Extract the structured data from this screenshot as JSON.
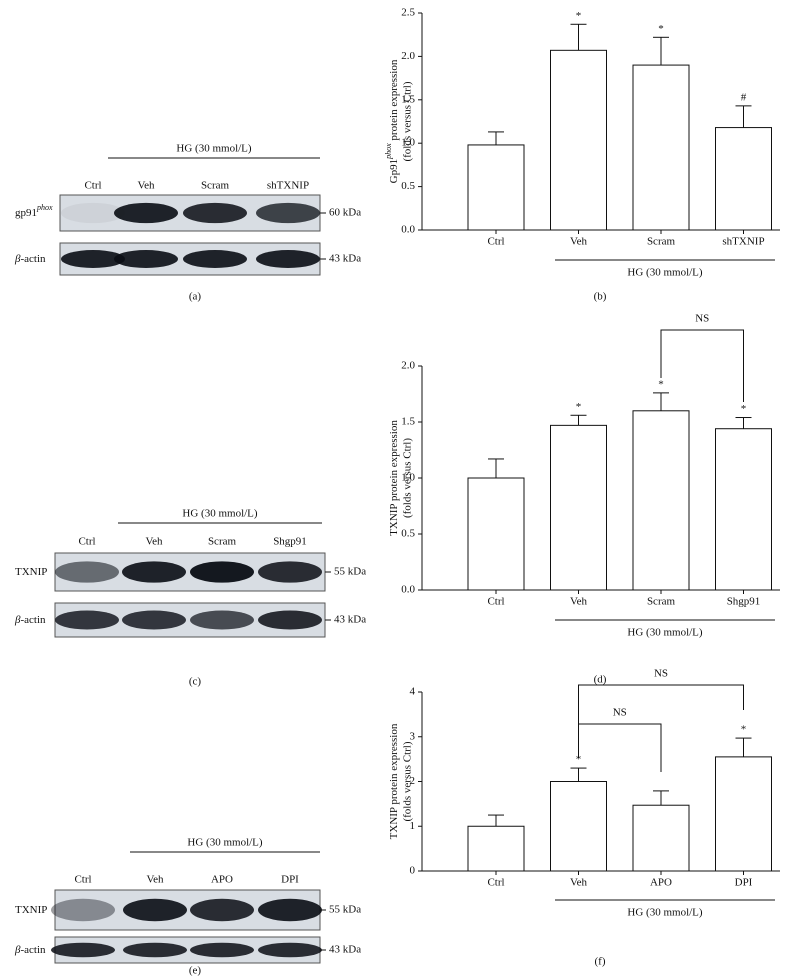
{
  "chart_data": [
    {
      "type": "bar",
      "ylabel": [
        "Gp91",
        "phox",
        " protein expression"
      ],
      "ylabel2": "(folds versus Ctrl)",
      "categories": [
        "Ctrl",
        "Veh",
        "Scram",
        "shTXNIP"
      ],
      "values": [
        0.98,
        2.07,
        1.9,
        1.18
      ],
      "errors": [
        0.15,
        0.3,
        0.32,
        0.25
      ],
      "annotations": [
        null,
        "*",
        "*",
        "#"
      ],
      "brackets": [],
      "ylim": [
        0,
        2.5
      ],
      "yticks": [
        {
          "value": 0,
          "label": "0.0"
        },
        {
          "value": 0.5,
          "label": "0.5"
        },
        {
          "value": 1,
          "label": "1.0"
        },
        {
          "value": 1.5,
          "label": "1.5"
        },
        {
          "value": 2,
          "label": "2.0"
        },
        {
          "value": 2.5,
          "label": "2.5"
        }
      ],
      "group_label": "HG (30 mmol/L)",
      "panel_label": "(b)",
      "color": "#ffffff"
    },
    {
      "type": "bar",
      "ylabel": [
        "TXNIP protein expression"
      ],
      "ylabel2": "(folds versus Ctrl)",
      "categories": [
        "Ctrl",
        "Veh",
        "Scram",
        "Shgp91"
      ],
      "values": [
        1.0,
        1.47,
        1.6,
        1.44
      ],
      "errors": [
        0.17,
        0.09,
        0.16,
        0.1
      ],
      "annotations": [
        null,
        "*",
        "*",
        "*"
      ],
      "brackets": [
        "NS"
      ],
      "ylim": [
        0,
        2
      ],
      "yticks": [
        {
          "value": 0,
          "label": "0.0"
        },
        {
          "value": 0.5,
          "label": "0.5"
        },
        {
          "value": 1,
          "label": "1.0"
        },
        {
          "value": 1.5,
          "label": "1.5"
        },
        {
          "value": 2,
          "label": "2.0"
        }
      ],
      "group_label": "HG (30 mmol/L)",
      "panel_label": "(d)",
      "color": "#ffffff"
    },
    {
      "type": "bar",
      "ylabel": [
        "TXNIP protein expression"
      ],
      "ylabel2": "(folds versus Ctrl)",
      "categories": [
        "Ctrl",
        "Veh",
        "APO",
        "DPI"
      ],
      "values": [
        1.0,
        2.0,
        1.47,
        2.55
      ],
      "errors": [
        0.25,
        0.3,
        0.32,
        0.42
      ],
      "annotations": [
        null,
        "*",
        null,
        "*"
      ],
      "brackets": [
        "NS",
        "NS"
      ],
      "ylim": [
        0,
        4
      ],
      "yticks": [
        0,
        1,
        2,
        3,
        4
      ],
      "group_label": "HG (30 mmol/L)",
      "panel_label": "(f)",
      "color": "#ffffff"
    }
  ],
  "blots": [
    {
      "group_label": "HG (30 mmol/L)",
      "lanes": [
        "Ctrl",
        "Veh",
        "Scram",
        "shTXNIP"
      ],
      "rows": [
        {
          "label": [
            "gp91",
            "phox"
          ],
          "size": "60 kDa"
        },
        {
          "label": [
            "β",
            "-actin"
          ],
          "size": "43 kDa"
        }
      ],
      "panel_label": "(a)"
    },
    {
      "group_label": "HG (30 mmol/L)",
      "lanes": [
        "Ctrl",
        "Veh",
        "Scram",
        "Shgp91"
      ],
      "rows": [
        {
          "label": [
            "TXNIP"
          ],
          "size": "55 kDa"
        },
        {
          "label": [
            "β",
            "-actin"
          ],
          "size": "43 kDa"
        }
      ],
      "panel_label": "(c)"
    },
    {
      "group_label": "HG (30 mmol/L)",
      "lanes": [
        "Ctrl",
        "Veh",
        "APO",
        "DPI"
      ],
      "rows": [
        {
          "label": [
            "TXNIP"
          ],
          "size": "55 kDa"
        },
        {
          "label": [
            "β",
            "-actin"
          ],
          "size": "43 kDa"
        }
      ],
      "panel_label": "(e)"
    }
  ]
}
